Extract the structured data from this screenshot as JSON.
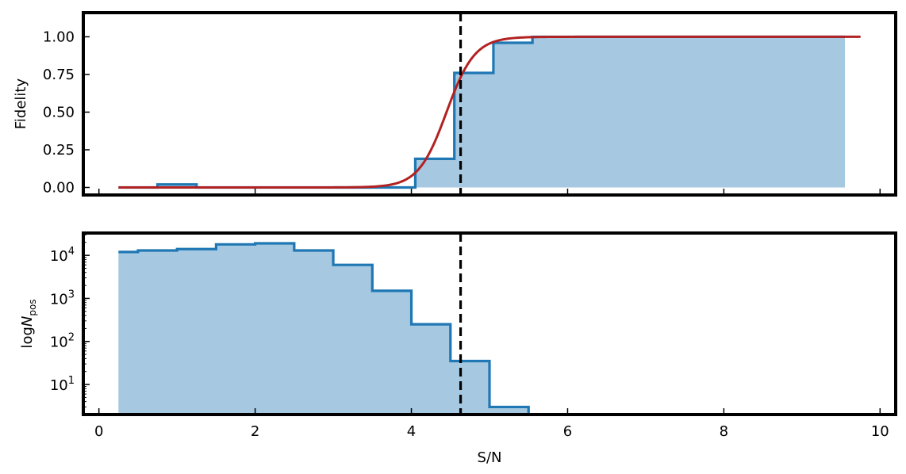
{
  "colors": {
    "step": "#1f77b4",
    "fill": "#a6c8e0",
    "fit": "#b22222",
    "threshold": "#000000"
  },
  "chart_data": [
    {
      "type": "line",
      "panel": "top",
      "title": "",
      "xlabel": "",
      "ylabel": "Fidelity",
      "xlim": [
        -0.2,
        10.2
      ],
      "ylim": [
        -0.05,
        1.16
      ],
      "yticks": [
        0.0,
        0.25,
        0.5,
        0.75,
        1.0
      ],
      "yticklabels": [
        "0.00",
        "0.25",
        "0.50",
        "0.75",
        "1.00"
      ],
      "threshold_x": 4.63,
      "histogram": {
        "edges": [
          0.25,
          0.75,
          1.25,
          1.75,
          2.25,
          2.75,
          3.25,
          3.75,
          4.05,
          4.55,
          5.05,
          5.55,
          6.05,
          6.55,
          7.05,
          7.55,
          8.05,
          8.55,
          9.05,
          9.55
        ],
        "values": [
          0.0,
          0.02,
          0.0,
          0.0,
          0.0,
          0.0,
          0.0,
          0.0,
          0.19,
          0.76,
          0.96,
          1.0,
          1.0,
          1.0,
          1.0,
          1.0,
          1.0,
          1.0,
          1.0
        ]
      },
      "fit": {
        "model": "logistic",
        "center": 4.45,
        "width": 0.18,
        "x_range": [
          0.25,
          9.75
        ]
      }
    },
    {
      "type": "line",
      "panel": "bottom",
      "title": "",
      "xlabel": "S/N",
      "ylabel": "logN_pos",
      "ylabel_parts": {
        "prefix": "log",
        "main": "N",
        "sub": "pos"
      },
      "xlim": [
        -0.2,
        10.2
      ],
      "xticks": [
        0,
        2,
        4,
        6,
        8,
        10
      ],
      "xticklabels": [
        "0",
        "2",
        "4",
        "6",
        "8",
        "10"
      ],
      "yscale": "log",
      "ylim": [
        2,
        33000
      ],
      "yticks": [
        10,
        100,
        1000,
        10000
      ],
      "yticklabels": [
        {
          "base": "10",
          "exp": "1"
        },
        {
          "base": "10",
          "exp": "2"
        },
        {
          "base": "10",
          "exp": "3"
        },
        {
          "base": "10",
          "exp": "4"
        }
      ],
      "threshold_x": 4.63,
      "histogram": {
        "edges": [
          0.25,
          0.5,
          1.0,
          1.5,
          2.0,
          2.5,
          3.0,
          3.5,
          4.0,
          4.5,
          5.0,
          5.5
        ],
        "values": [
          12000,
          13000,
          14000,
          18000,
          19000,
          13000,
          6000,
          1500,
          250,
          35,
          3
        ]
      }
    }
  ]
}
